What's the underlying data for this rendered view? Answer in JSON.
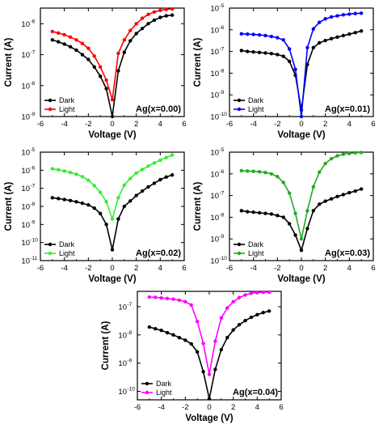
{
  "chart_data": [
    {
      "type": "line",
      "sample_label": "Ag(x=0.00)",
      "xlabel": "Voltage (V)",
      "ylabel": "Current (A)",
      "log_y": true,
      "xlim": [
        -6,
        6
      ],
      "ylim": [
        1e-09,
        3.2e-06
      ],
      "x_ticks": [
        "-6",
        "-4",
        "-2",
        "0",
        "2",
        "4",
        "6"
      ],
      "y_tick_exponents": [
        -9,
        -8,
        -7,
        -6
      ],
      "legend_position": "bottom-left",
      "legend": [
        "Dark",
        "Light"
      ],
      "colors": {
        "Dark": "#000000",
        "Light": "#ff0000"
      },
      "series": [
        {
          "name": "Dark",
          "x": [
            -5,
            -4.5,
            -4,
            -3.5,
            -3,
            -2.5,
            -2,
            -1.5,
            -1,
            -0.5,
            0,
            0.5,
            1,
            1.5,
            2,
            2.5,
            3,
            3.5,
            4,
            4.5,
            5
          ],
          "y": [
            3e-07,
            2.6e-07,
            2.2e-07,
            1.8e-07,
            1.4e-07,
            1e-07,
            7e-08,
            4e-08,
            2e-08,
            8e-09,
            1e-09,
            3e-08,
            1.2e-07,
            2.8e-07,
            4.8e-07,
            7e-07,
            1e-06,
            1.3e-06,
            1.6e-06,
            1.8e-06,
            1.9e-06
          ]
        },
        {
          "name": "Light",
          "x": [
            -5,
            -4.5,
            -4,
            -3.5,
            -3,
            -2.5,
            -2,
            -1.5,
            -1,
            -0.5,
            0,
            0.5,
            1,
            1.5,
            2,
            2.5,
            3,
            3.5,
            4,
            4.5,
            5
          ],
          "y": [
            5.6e-07,
            5e-07,
            4.4e-07,
            3.7e-07,
            3e-07,
            2.3e-07,
            1.6e-07,
            9e-08,
            4e-08,
            1.5e-08,
            3.5e-09,
            1.1e-07,
            3e-07,
            6e-07,
            1e-06,
            1.5e-06,
            2e-06,
            2.4e-06,
            2.7e-06,
            2.9e-06,
            3e-06
          ]
        }
      ]
    },
    {
      "type": "line",
      "sample_label": "Ag(x=0.01)",
      "xlabel": "Voltage (V)",
      "ylabel": "Current (A)",
      "log_y": true,
      "xlim": [
        -6,
        6
      ],
      "ylim": [
        1e-10,
        1e-05
      ],
      "x_ticks": [
        "-6",
        "-4",
        "-2",
        "0",
        "2",
        "4",
        "6"
      ],
      "y_tick_exponents": [
        -10,
        -9,
        -8,
        -7,
        -6,
        -5
      ],
      "legend_position": "bottom-left",
      "legend": [
        "Dark",
        "Light"
      ],
      "colors": {
        "Dark": "#000000",
        "Light": "#0000ff"
      },
      "series": [
        {
          "name": "Dark",
          "x": [
            -5,
            -4.5,
            -4,
            -3.5,
            -3,
            -2.5,
            -2,
            -1.5,
            -1,
            -0.5,
            0,
            0.5,
            1,
            1.5,
            2,
            2.5,
            3,
            3.5,
            4,
            4.5,
            5
          ],
          "y": [
            1.1e-07,
            1e-07,
            9.5e-08,
            9e-08,
            8.5e-08,
            8e-08,
            7.2e-08,
            6e-08,
            3.5e-08,
            8e-09,
            2e-10,
            2.5e-08,
            1.5e-07,
            2.5e-07,
            3.2e-07,
            3.9e-07,
            4.6e-07,
            5.4e-07,
            6.3e-07,
            7.4e-07,
            8.8e-07
          ]
        },
        {
          "name": "Light",
          "x": [
            -5,
            -4.5,
            -4,
            -3.5,
            -3,
            -2.5,
            -2,
            -1.5,
            -1,
            -0.5,
            0,
            0.5,
            1,
            1.5,
            2,
            2.5,
            3,
            3.5,
            4,
            4.5,
            5
          ],
          "y": [
            6.5e-07,
            6.3e-07,
            6.1e-07,
            5.8e-07,
            5.4e-07,
            4.9e-07,
            4.3e-07,
            3.4e-07,
            1.3e-07,
            1.5e-08,
            1e-10,
            1.5e-07,
            1.1e-06,
            2.2e-06,
            3.2e-06,
            3.9e-06,
            4.4e-06,
            4.9e-06,
            5.3e-06,
            5.6e-06,
            5.8e-06
          ]
        }
      ]
    },
    {
      "type": "line",
      "sample_label": "Ag(x=0.02)",
      "xlabel": "Voltage (V)",
      "ylabel": "Current (A)",
      "log_y": true,
      "xlim": [
        -6,
        6
      ],
      "ylim": [
        1e-11,
        1e-05
      ],
      "x_ticks": [
        "-6",
        "-4",
        "-2",
        "0",
        "2",
        "4",
        "6"
      ],
      "y_tick_exponents": [
        -11,
        -10,
        -9,
        -8,
        -7,
        -6,
        -5
      ],
      "legend_position": "bottom-left",
      "legend": [
        "Dark",
        "Light"
      ],
      "colors": {
        "Dark": "#000000",
        "Light": "#33ee33"
      },
      "series": [
        {
          "name": "Dark",
          "x": [
            -5,
            -4.5,
            -4,
            -3.5,
            -3,
            -2.5,
            -2,
            -1.5,
            -1,
            -0.5,
            0,
            0.5,
            1,
            1.5,
            2,
            2.5,
            3,
            3.5,
            4,
            4.5,
            5
          ],
          "y": [
            3e-08,
            2.7e-08,
            2.4e-08,
            2.1e-08,
            1.8e-08,
            1.5e-08,
            1.2e-08,
            8e-09,
            4e-09,
            1e-09,
            4e-11,
            2e-09,
            1e-08,
            2e-08,
            4e-08,
            7e-08,
            1.2e-07,
            1.9e-07,
            3e-07,
            4.2e-07,
            5.5e-07
          ]
        },
        {
          "name": "Light",
          "x": [
            -5,
            -4.5,
            -4,
            -3.5,
            -3,
            -2.5,
            -2,
            -1.5,
            -1,
            -0.5,
            0,
            0.5,
            1,
            1.5,
            2,
            2.5,
            3,
            3.5,
            4,
            4.5,
            5
          ],
          "y": [
            1.2e-06,
            1.05e-06,
            9e-07,
            7.5e-07,
            6e-07,
            4.4e-07,
            2.8e-07,
            1.4e-07,
            6e-08,
            1.8e-08,
            2e-09,
            3e-08,
            1.5e-07,
            3.5e-07,
            7e-07,
            1.1e-06,
            1.7e-06,
            2.5e-06,
            3.6e-06,
            5e-06,
            7e-06
          ]
        }
      ]
    },
    {
      "type": "line",
      "sample_label": "Ag(x=0.03)",
      "xlabel": "Voltage (V)",
      "ylabel": "Current (A)",
      "log_y": true,
      "xlim": [
        -6,
        6
      ],
      "ylim": [
        1e-10,
        1e-05
      ],
      "x_ticks": [
        "-6",
        "-4",
        "-2",
        "0",
        "2",
        "4",
        "6"
      ],
      "y_tick_exponents": [
        -10,
        -9,
        -8,
        -7,
        -6,
        -5
      ],
      "legend_position": "bottom-left",
      "legend": [
        "Dark",
        "Light"
      ],
      "colors": {
        "Dark": "#000000",
        "Light": "#22aa22"
      },
      "series": [
        {
          "name": "Dark",
          "x": [
            -5,
            -4.5,
            -4,
            -3.5,
            -3,
            -2.5,
            -2,
            -1.5,
            -1,
            -0.5,
            0,
            0.5,
            1,
            1.5,
            2,
            2.5,
            3,
            3.5,
            4,
            4.5,
            5
          ],
          "y": [
            2e-08,
            1.8e-08,
            1.7e-08,
            1.6e-08,
            1.5e-08,
            1.4e-08,
            1.2e-08,
            1e-08,
            5e-09,
            1.5e-09,
            3e-10,
            3e-09,
            2e-08,
            4e-08,
            5.5e-08,
            7e-08,
            9e-08,
            1.1e-07,
            1.35e-07,
            1.6e-07,
            2e-07
          ]
        },
        {
          "name": "Light",
          "x": [
            -5,
            -4.5,
            -4,
            -3.5,
            -3,
            -2.5,
            -2,
            -1.5,
            -1,
            -0.5,
            0,
            0.5,
            1,
            1.5,
            2,
            2.5,
            3,
            3.5,
            4,
            4.5,
            5
          ],
          "y": [
            1.4e-06,
            1.35e-06,
            1.3e-06,
            1.25e-06,
            1.15e-06,
            1e-06,
            7.5e-07,
            4e-07,
            1.3e-07,
            1.5e-08,
            1e-09,
            2e-08,
            2.5e-07,
            1.2e-06,
            3e-06,
            5e-06,
            6.8e-06,
            8e-06,
            8.8e-06,
            9.3e-06,
            9.6e-06
          ]
        }
      ]
    },
    {
      "type": "line",
      "sample_label": "Ag(x=0.04)",
      "xlabel": "Voltage (V)",
      "ylabel": "Current (A)",
      "log_y": true,
      "xlim": [
        -6,
        6
      ],
      "ylim": [
        5e-11,
        3.5e-07
      ],
      "x_ticks": [
        "-6",
        "-4",
        "-2",
        "0",
        "2",
        "4",
        "6"
      ],
      "y_tick_exponents": [
        -10,
        -9,
        -8,
        -7
      ],
      "legend_position": "bottom-left",
      "legend": [
        "Dark",
        "Light"
      ],
      "colors": {
        "Dark": "#000000",
        "Light": "#ff00ff"
      },
      "series": [
        {
          "name": "Dark",
          "x": [
            -5,
            -4.5,
            -4,
            -3.5,
            -3,
            -2.5,
            -2,
            -1.5,
            -1,
            -0.5,
            0,
            0.5,
            1,
            1.5,
            2,
            2.5,
            3,
            3.5,
            4,
            4.5,
            5
          ],
          "y": [
            1.9e-08,
            1.65e-08,
            1.45e-08,
            1.2e-08,
            1e-08,
            8e-09,
            6.5e-09,
            4.8e-09,
            2.5e-09,
            5e-10,
            5.5e-11,
            6e-10,
            3e-09,
            8e-09,
            1.5e-08,
            2.3e-08,
            3.2e-08,
            4.2e-08,
            5.2e-08,
            6.2e-08,
            7e-08
          ]
        },
        {
          "name": "Light",
          "x": [
            -5,
            -4.5,
            -4,
            -3.5,
            -3,
            -2.5,
            -2,
            -1.5,
            -1,
            -0.5,
            0,
            0.5,
            1,
            1.5,
            2,
            2.5,
            3,
            3.5,
            4,
            4.5,
            5
          ],
          "y": [
            2.2e-07,
            2.15e-07,
            2.05e-07,
            1.95e-07,
            1.85e-07,
            1.7e-07,
            1.5e-07,
            1.15e-07,
            3e-08,
            5e-09,
            4e-10,
            6e-09,
            4e-08,
            9e-08,
            1.5e-07,
            2.1e-07,
            2.6e-07,
            3e-07,
            3.2e-07,
            3.25e-07,
            3.3e-07
          ]
        }
      ]
    }
  ]
}
